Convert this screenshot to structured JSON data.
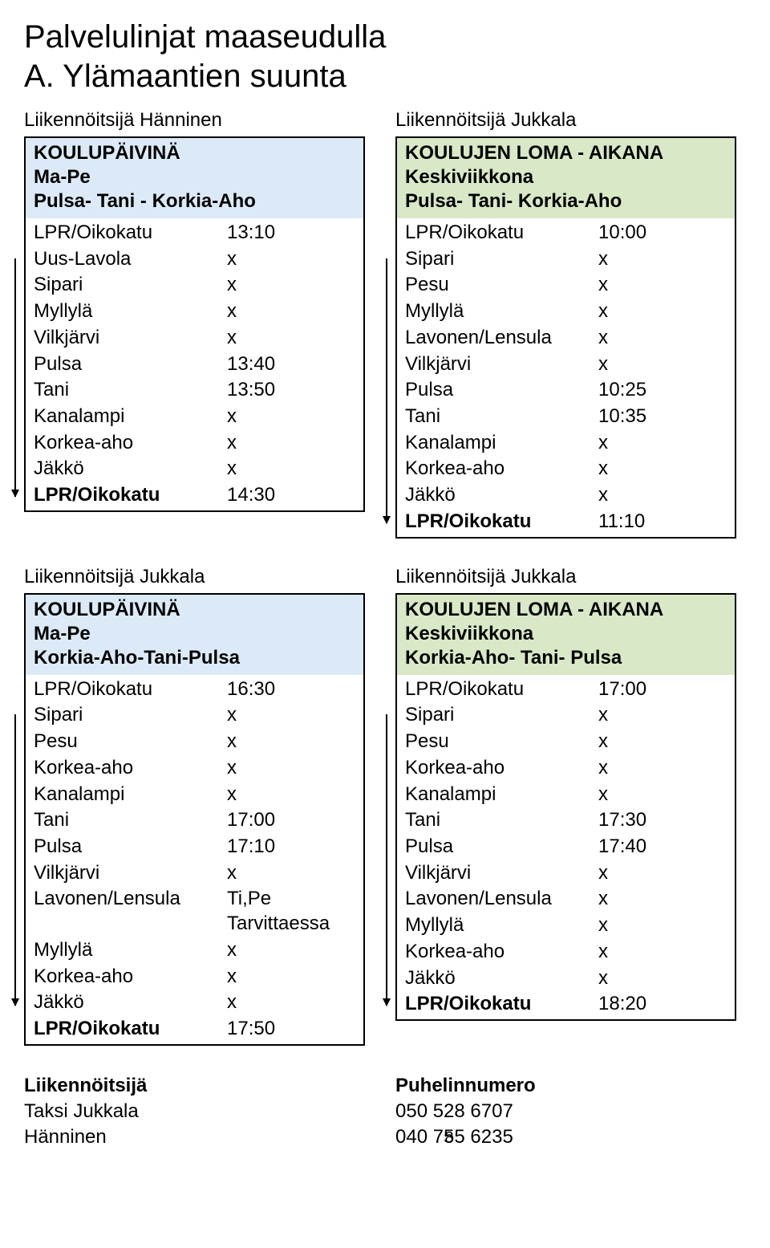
{
  "title": "Palvelulinjat maaseudulla",
  "subtitle": "A. Ylämaantien suunta",
  "colors": {
    "blueHeader": "#dceaf7",
    "greenHeader": "#d9e8c6",
    "border": "#000000",
    "background": "#ffffff"
  },
  "blocks": {
    "topLeft": {
      "operator": "Liikennöitsijä Hänninen",
      "headerStyle": "blue",
      "header1": "KOULUPÄIVINÄ",
      "header2": "Ma-Pe",
      "header3": "Pulsa- Tani - Korkia-Aho",
      "rows": [
        [
          "LPR/Oikokatu",
          "13:10"
        ],
        [
          "Uus-Lavola",
          "x"
        ],
        [
          "Sipari",
          "x"
        ],
        [
          "Myllylä",
          "x"
        ],
        [
          "Vilkjärvi",
          "x"
        ],
        [
          "Pulsa",
          "13:40"
        ],
        [
          "Tani",
          "13:50"
        ],
        [
          "Kanalampi",
          "x"
        ],
        [
          "Korkea-aho",
          "x"
        ],
        [
          "Jäkkö",
          "x"
        ],
        [
          "LPR/Oikokatu",
          "14:30"
        ]
      ],
      "arrow": {
        "fromRow": 1,
        "toRow": 10
      }
    },
    "topRight": {
      "operator": "Liikennöitsijä Jukkala",
      "headerStyle": "green",
      "header1": "KOULUJEN LOMA - AIKANA",
      "header2": "Keskiviikkona",
      "header3": "Pulsa- Tani- Korkia-Aho",
      "rows": [
        [
          "LPR/Oikokatu",
          "10:00"
        ],
        [
          "Sipari",
          "x"
        ],
        [
          "Pesu",
          "x"
        ],
        [
          "Myllylä",
          "x"
        ],
        [
          "Lavonen/Lensula",
          "x"
        ],
        [
          "Vilkjärvi",
          "x"
        ],
        [
          "Pulsa",
          "10:25"
        ],
        [
          "Tani",
          "10:35"
        ],
        [
          "Kanalampi",
          "x"
        ],
        [
          "Korkea-aho",
          "x"
        ],
        [
          "Jäkkö",
          "x"
        ],
        [
          "LPR/Oikokatu",
          "11:10"
        ]
      ],
      "arrow": {
        "fromRow": 1,
        "toRow": 11
      }
    },
    "bottomLeft": {
      "operator": "Liikennöitsijä Jukkala",
      "headerStyle": "blue",
      "header1": "KOULUPÄIVINÄ",
      "header2": "Ma-Pe",
      "header3": "Korkia-Aho-Tani-Pulsa",
      "rows": [
        [
          "LPR/Oikokatu",
          "16:30"
        ],
        [
          "Sipari",
          "x"
        ],
        [
          "Pesu",
          "x"
        ],
        [
          "Korkea-aho",
          "x"
        ],
        [
          "Kanalampi",
          "x"
        ],
        [
          "Tani",
          "17:00"
        ],
        [
          "Pulsa",
          "17:10"
        ],
        [
          "Vilkjärvi",
          "x"
        ],
        [
          "Lavonen/Lensula",
          "Ti,Pe Tarvittaessa"
        ],
        [
          "Myllylä",
          "x"
        ],
        [
          "Korkea-aho",
          "x"
        ],
        [
          "Jäkkö",
          "x"
        ],
        [
          "LPR/Oikokatu",
          "17:50"
        ]
      ],
      "arrow": {
        "fromRow": 1,
        "toRow": 12
      }
    },
    "bottomRight": {
      "operator": "Liikennöitsijä Jukkala",
      "headerStyle": "green",
      "header1": "KOULUJEN LOMA - AIKANA",
      "header2": "Keskiviikkona",
      "header3": "Korkia-Aho- Tani- Pulsa",
      "rows": [
        [
          "LPR/Oikokatu",
          "17:00"
        ],
        [
          "Sipari",
          "x"
        ],
        [
          "Pesu",
          "x"
        ],
        [
          "Korkea-aho",
          "x"
        ],
        [
          "Kanalampi",
          "x"
        ],
        [
          "Tani",
          "17:30"
        ],
        [
          "Pulsa",
          "17:40"
        ],
        [
          "Vilkjärvi",
          "x"
        ],
        [
          "Lavonen/Lensula",
          "x"
        ],
        [
          "Myllylä",
          "x"
        ],
        [
          "Korkea-aho",
          "x"
        ],
        [
          "Jäkkö",
          "x"
        ],
        [
          "LPR/Oikokatu",
          "18:20"
        ]
      ],
      "arrow": {
        "fromRow": 1,
        "toRow": 12
      }
    }
  },
  "contacts": {
    "leftHeader": "Liikennöitsijä",
    "rightHeader": "Puhelinnumero",
    "lines": [
      [
        "Taksi Jukkala",
        "050  528 6707"
      ],
      [
        "Hänninen",
        "040  755 6235"
      ]
    ]
  },
  "pageNumber": "8"
}
